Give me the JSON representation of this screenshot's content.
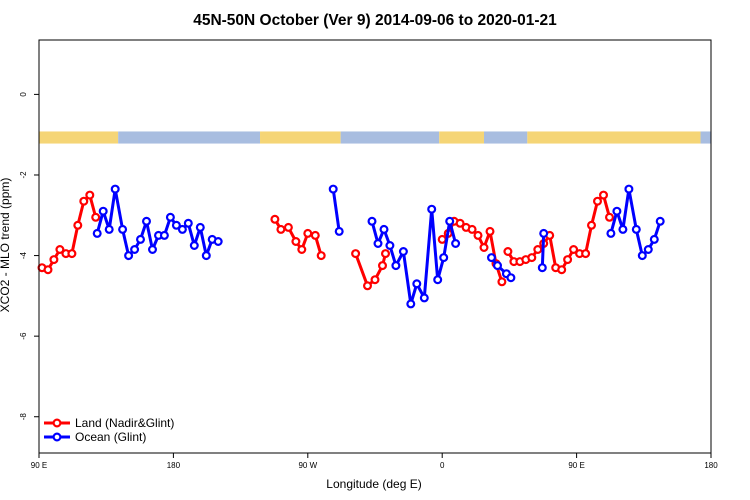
{
  "chart_data": {
    "type": "line",
    "title": "45N-50N October (Ver 9)   2014-09-06 to 2020-01-21",
    "xlabel": "Longitude (deg E)",
    "ylabel": "XCO2 - MLO trend (ppm)",
    "xlim": [
      90,
      540
    ],
    "ylim": [
      -8.9,
      1.35
    ],
    "x_tick_values": [
      90,
      180,
      270,
      360,
      450,
      540
    ],
    "x_tick_labels": [
      "90 E",
      "180",
      "90 W",
      "0",
      "90 E",
      "180"
    ],
    "y_tick_values": [
      0,
      -2,
      -4,
      -6,
      -8
    ],
    "y_tick_labels": [
      "0",
      "-2",
      "-4",
      "-6",
      "-8"
    ],
    "legend_position": "bottom-left",
    "land_ocean_band": {
      "y_range": [
        -1.22,
        -0.92
      ],
      "land_color": "#f5d576",
      "ocean_color": "#a8bde0",
      "segments": [
        {
          "type": "land",
          "from": 90,
          "to": 143
        },
        {
          "type": "ocean",
          "from": 143,
          "to": 238
        },
        {
          "type": "land",
          "from": 238,
          "to": 292
        },
        {
          "type": "ocean",
          "from": 292,
          "to": 358
        },
        {
          "type": "land",
          "from": 358,
          "to": 388
        },
        {
          "type": "ocean",
          "from": 388,
          "to": 417
        },
        {
          "type": "land",
          "from": 417,
          "to": 533
        },
        {
          "type": "ocean",
          "from": 533,
          "to": 540
        }
      ]
    },
    "series": [
      {
        "name": "Land (Nadir&Glint)",
        "color": "#ff0000",
        "segments": [
          [
            [
              92,
              -4.3
            ],
            [
              96,
              -4.35
            ],
            [
              100,
              -4.1
            ],
            [
              104,
              -3.85
            ],
            [
              108,
              -3.95
            ],
            [
              112,
              -3.95
            ],
            [
              116,
              -3.25
            ],
            [
              120,
              -2.65
            ],
            [
              124,
              -2.5
            ],
            [
              128,
              -3.05
            ]
          ],
          [
            [
              248,
              -3.1
            ],
            [
              252,
              -3.35
            ],
            [
              257,
              -3.3
            ],
            [
              262,
              -3.65
            ],
            [
              266,
              -3.85
            ],
            [
              270,
              -3.45
            ],
            [
              275,
              -3.5
            ],
            [
              279,
              -4.0
            ]
          ],
          [
            [
              302,
              -3.95
            ],
            [
              310,
              -4.75
            ],
            [
              315,
              -4.6
            ],
            [
              320,
              -4.25
            ],
            [
              322,
              -3.95
            ]
          ],
          [
            [
              360,
              -3.6
            ],
            [
              364,
              -3.45
            ],
            [
              368,
              -3.15
            ],
            [
              372,
              -3.2
            ],
            [
              376,
              -3.3
            ],
            [
              380,
              -3.35
            ],
            [
              384,
              -3.5
            ],
            [
              388,
              -3.8
            ],
            [
              392,
              -3.4
            ],
            [
              396,
              -4.2
            ],
            [
              400,
              -4.65
            ]
          ],
          [
            [
              404,
              -3.9
            ],
            [
              408,
              -4.15
            ],
            [
              412,
              -4.15
            ],
            [
              416,
              -4.1
            ],
            [
              420,
              -4.05
            ],
            [
              424,
              -3.85
            ],
            [
              428,
              -3.7
            ],
            [
              432,
              -3.5
            ],
            [
              436,
              -4.3
            ],
            [
              440,
              -4.35
            ],
            [
              444,
              -4.1
            ],
            [
              448,
              -3.85
            ],
            [
              452,
              -3.95
            ],
            [
              456,
              -3.95
            ],
            [
              460,
              -3.25
            ],
            [
              464,
              -2.65
            ],
            [
              468,
              -2.5
            ],
            [
              472,
              -3.05
            ]
          ]
        ]
      },
      {
        "name": "Ocean (Glint)",
        "color": "#0000ff",
        "segments": [
          [
            [
              129,
              -3.45
            ],
            [
              133,
              -2.9
            ],
            [
              137,
              -3.35
            ],
            [
              141,
              -2.35
            ],
            [
              146,
              -3.35
            ],
            [
              150,
              -4.0
            ],
            [
              154,
              -3.85
            ],
            [
              158,
              -3.6
            ],
            [
              162,
              -3.15
            ],
            [
              166,
              -3.85
            ],
            [
              170,
              -3.5
            ],
            [
              174,
              -3.5
            ],
            [
              178,
              -3.05
            ],
            [
              182,
              -3.25
            ],
            [
              186,
              -3.35
            ],
            [
              190,
              -3.2
            ],
            [
              194,
              -3.75
            ],
            [
              198,
              -3.3
            ],
            [
              202,
              -4.0
            ],
            [
              206,
              -3.6
            ],
            [
              210,
              -3.65
            ]
          ],
          [
            [
              287,
              -2.35
            ],
            [
              291,
              -3.4
            ]
          ],
          [
            [
              313,
              -3.15
            ],
            [
              317,
              -3.7
            ],
            [
              321,
              -3.35
            ],
            [
              325,
              -3.75
            ],
            [
              329,
              -4.25
            ],
            [
              334,
              -3.9
            ],
            [
              339,
              -5.2
            ],
            [
              343,
              -4.7
            ],
            [
              348,
              -5.05
            ],
            [
              353,
              -2.85
            ],
            [
              357,
              -4.6
            ],
            [
              361,
              -4.05
            ],
            [
              365,
              -3.15
            ],
            [
              369,
              -3.7
            ]
          ],
          [
            [
              393,
              -4.05
            ],
            [
              397,
              -4.25
            ],
            [
              403,
              -4.45
            ],
            [
              406,
              -4.55
            ]
          ],
          [
            [
              427,
              -4.3
            ],
            [
              428,
              -3.45
            ]
          ],
          [
            [
              473,
              -3.45
            ],
            [
              477,
              -2.9
            ],
            [
              481,
              -3.35
            ],
            [
              485,
              -2.35
            ],
            [
              490,
              -3.35
            ],
            [
              494,
              -4.0
            ],
            [
              498,
              -3.85
            ],
            [
              502,
              -3.6
            ],
            [
              506,
              -3.15
            ]
          ]
        ]
      }
    ]
  }
}
